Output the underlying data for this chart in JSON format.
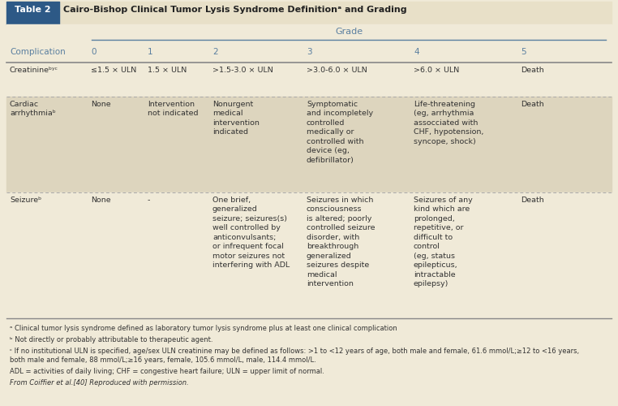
{
  "title_box_label": "Table 2",
  "title_text": "Cairo-Bishop Clinical Tumor Lysis Syndrome Definitionᵃ and Grading",
  "title_box_bg": "#2d5986",
  "title_bar_bg": "#e8e0c8",
  "title_text_color": "#1a1a1a",
  "header_grade_text": "Grade",
  "header_grade_color": "#5a7fa0",
  "bg_color": "#f0ead8",
  "col_header_color": "#5a7fa0",
  "col_headers": [
    "Complication",
    "0",
    "1",
    "2",
    "3",
    "4",
    "5"
  ],
  "rows": [
    {
      "complication": "Creatinineᵇʸᶜ",
      "0": "≤1.5 × ULN",
      "1": "1.5 × ULN",
      "2": ">1.5-3.0 × ULN",
      "3": ">3.0-6.0 × ULN",
      "4": ">6.0 × ULN",
      "5": "Death",
      "bg": "#f0ead8"
    },
    {
      "complication": "Cardiac\narrhythmiaᵇ",
      "0": "None",
      "1": "Intervention\nnot indicated",
      "2": "Nonurgent\nmedical\nintervention\nindicated",
      "3": "Symptomatic\nand incompletely\ncontrolled\nmedically or\ncontrolled with\ndevice (eg,\ndefibrillator)",
      "4": "Life-threatening\n(eg, arrhythmia\nassocciated with\nCHF, hypotension,\nsyncope, shock)",
      "5": "Death",
      "bg": "#ddd5be"
    },
    {
      "complication": "Seizureᵇ",
      "0": "None",
      "1": "-",
      "2": "One brief,\ngeneralized\nseizure; seizures(s)\nwell controlled by\nanticonvulsants;\nor infrequent focal\nmotor seizures not\ninterfering with ADL",
      "3": "Seizures in which\nconsciousness\nis altered; poorly\ncontrolled seizure\ndisorder, with\nbreakthrough\ngeneralized\nseizures despite\nmedical\nintervention",
      "4": "Seizures of any\nkind which are\nprolonged,\nrepetitive, or\ndifficult to\ncontrol\n(eg, status\nepilepticus,\nintractable\nepilepsy)",
      "5": "Death",
      "bg": "#f0ead8"
    }
  ],
  "footnotes": [
    "ᵃ Clinical tumor lysis syndrome defined as laboratory tumor lysis syndrome plus at least one clinical complication",
    "ᵇ Not directly or probably attributable to therapeutic agent.",
    "ᶜ If no institutional ULN is specified, age/sex ULN creatinine may be defined as follows: >1 to <12 years of age, both male and female, 61.6 mmol/L;≥12 to <16 years,\nboth male and female, 88 mmol/L;≥16 years, female, 105.6 mmol/L, male, 114.4 mmol/L.",
    "ADL = activities of daily living; CHF = congestive heart failure; ULN = upper limit of normal.",
    "From Coiffier et al.[40] Reproduced with permission."
  ],
  "fn_italic": [
    false,
    false,
    false,
    false,
    true
  ],
  "figure_bg": "#f0ead8",
  "text_color": "#333333",
  "line_color": "#888888",
  "dashed_line_color": "#aaaaaa"
}
